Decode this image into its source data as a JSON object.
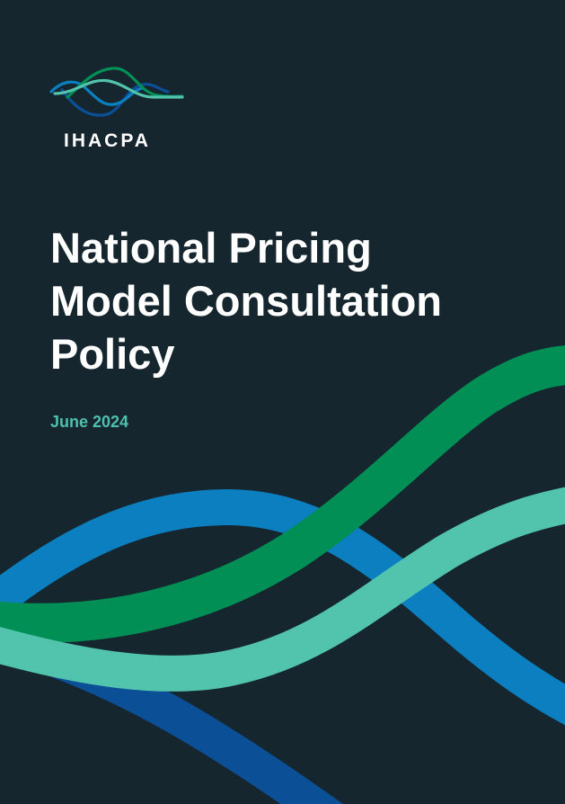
{
  "brand": {
    "name": "IHACPA",
    "colors": {
      "background": "#15262e",
      "green": "#028f56",
      "blue": "#0b7fc0",
      "dark_blue": "#0b4f97",
      "teal": "#52c3ad"
    }
  },
  "cover": {
    "title_lines": [
      "National Pricing",
      "Model Consultation",
      "Policy"
    ],
    "date": "June 2024"
  }
}
